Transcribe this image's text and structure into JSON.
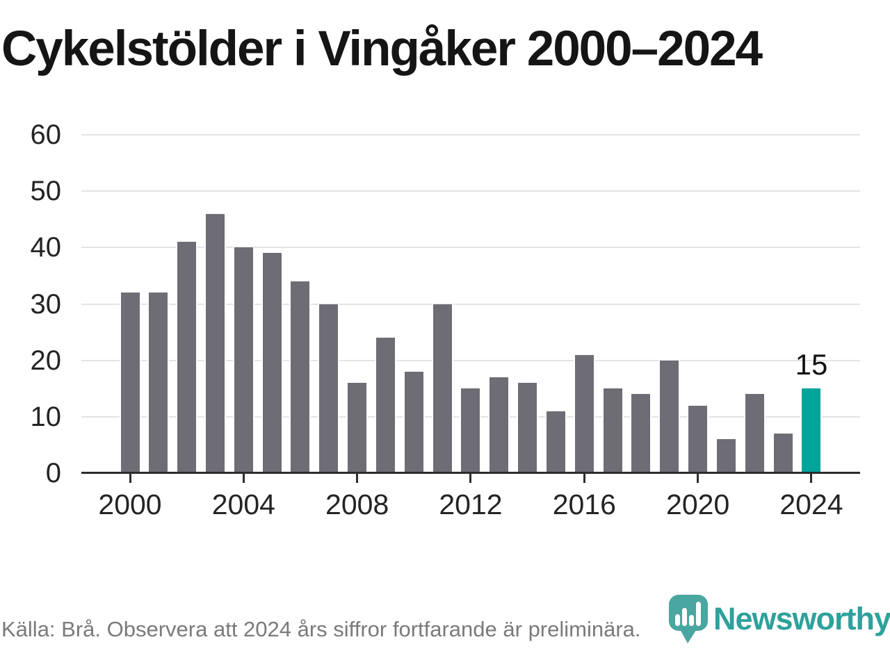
{
  "title": "Cykelstölder i Vingåker 2000–2024",
  "footer": {
    "source": "Källa: Brå. Observera att 2024 års siffror fortfarande är preliminära."
  },
  "logo": {
    "text": "Newsworthy",
    "pin_color": "#4aa6a0",
    "text_color": "#2ea19b"
  },
  "colors": {
    "bar": "#6e6d75",
    "highlight": "#00a49a",
    "gridline": "#e3e3e3",
    "axis": "#2d2d2d",
    "title_text": "#151515",
    "tick_text": "#242424",
    "source_text": "#7a7a7a"
  },
  "chart_data": {
    "type": "bar",
    "title": "Cykelstölder i Vingåker 2000–2024",
    "xlabel": "",
    "ylabel": "",
    "categories": [
      2000,
      2001,
      2002,
      2003,
      2004,
      2005,
      2006,
      2007,
      2008,
      2009,
      2010,
      2011,
      2012,
      2013,
      2014,
      2015,
      2016,
      2017,
      2018,
      2019,
      2020,
      2021,
      2022,
      2023,
      2024
    ],
    "values": [
      32,
      32,
      41,
      46,
      40,
      39,
      34,
      30,
      16,
      24,
      18,
      30,
      15,
      17,
      16,
      11,
      21,
      15,
      14,
      20,
      12,
      6,
      14,
      7,
      15
    ],
    "highlight_index": 24,
    "highlight_label": "15",
    "ylim": [
      0,
      60
    ],
    "yticks": [
      0,
      10,
      20,
      30,
      40,
      50,
      60
    ],
    "xticks": [
      2000,
      2004,
      2008,
      2012,
      2016,
      2020,
      2024
    ],
    "grid": true,
    "legend": "none",
    "bar_color": "#6e6d75",
    "highlight_color": "#00a49a"
  }
}
